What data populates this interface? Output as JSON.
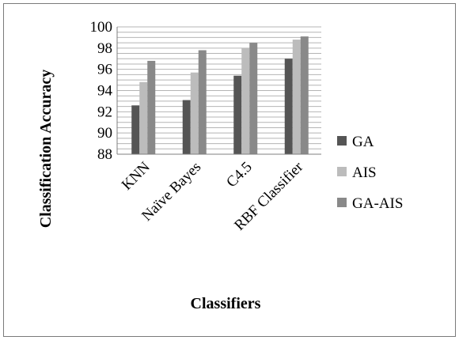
{
  "chart_data": {
    "type": "bar",
    "xlabel": "Classifiers",
    "ylabel": "Classification Accuracy",
    "categories": [
      "KNN",
      "Naïve Bayes",
      "C4.5",
      "RBF Classifier"
    ],
    "series": [
      {
        "name": "GA",
        "values": [
          92.6,
          93.1,
          95.4,
          97.0
        ],
        "color": "#555555"
      },
      {
        "name": "AIS",
        "values": [
          94.8,
          95.7,
          98.0,
          98.8
        ],
        "color": "#bcbcbc"
      },
      {
        "name": "GA-AIS",
        "values": [
          96.8,
          97.8,
          98.5,
          99.1
        ],
        "color": "#898989"
      }
    ],
    "ylim": [
      88,
      100
    ],
    "yticks": [
      88,
      90,
      92,
      94,
      96,
      98,
      100
    ],
    "grid": true,
    "grid_interval": 0.5,
    "legend_position": "right"
  }
}
